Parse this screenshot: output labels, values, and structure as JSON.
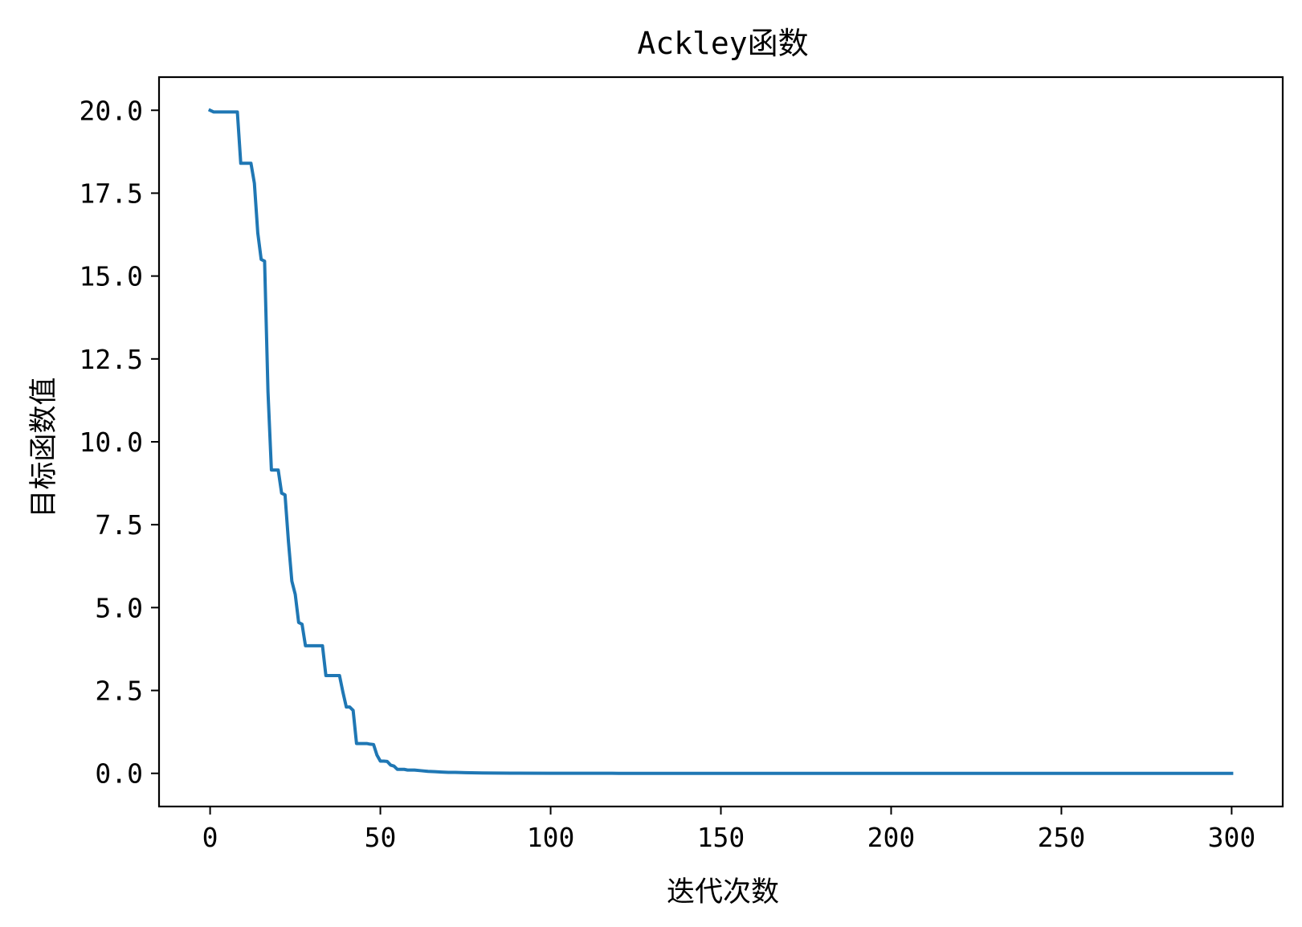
{
  "chart_data": {
    "type": "line",
    "title": "Ackley函数",
    "xlabel": "迭代次数",
    "ylabel": "目标函数值",
    "xlim": [
      -15,
      315
    ],
    "ylim": [
      -1,
      21
    ],
    "x_ticks": [
      0,
      50,
      100,
      150,
      200,
      250,
      300
    ],
    "x_tick_labels": [
      "0",
      "50",
      "100",
      "150",
      "200",
      "250",
      "300"
    ],
    "y_ticks": [
      0.0,
      2.5,
      5.0,
      7.5,
      10.0,
      12.5,
      15.0,
      17.5,
      20.0
    ],
    "y_tick_labels": [
      "0.0",
      "2.5",
      "5.0",
      "7.5",
      "10.0",
      "12.5",
      "15.0",
      "17.5",
      "20.0"
    ],
    "grid": false,
    "line_color": "#1f77b4",
    "series": [
      {
        "x": [
          0,
          1,
          2,
          3,
          4,
          5,
          6,
          7,
          8,
          9,
          10,
          11,
          12,
          13,
          14,
          15,
          16,
          17,
          18,
          19,
          20,
          21,
          22,
          23,
          24,
          25,
          26,
          27,
          28,
          29,
          30,
          31,
          32,
          33,
          34,
          35,
          36,
          37,
          38,
          39,
          40,
          41,
          42,
          43,
          44,
          45,
          46,
          47,
          48,
          49,
          50,
          51,
          52,
          53,
          54,
          55,
          56,
          57,
          58,
          59,
          60,
          62,
          64,
          66,
          68,
          70,
          72,
          75,
          80,
          90,
          100,
          120,
          150,
          200,
          250,
          300
        ],
        "y": [
          20.0,
          19.95,
          19.95,
          19.95,
          19.95,
          19.95,
          19.95,
          19.95,
          19.95,
          18.4,
          18.4,
          18.4,
          18.4,
          17.8,
          16.3,
          15.5,
          15.45,
          11.5,
          9.15,
          9.15,
          9.15,
          8.45,
          8.4,
          7.0,
          5.8,
          5.4,
          4.55,
          4.5,
          3.85,
          3.85,
          3.85,
          3.85,
          3.85,
          3.85,
          2.95,
          2.95,
          2.95,
          2.95,
          2.95,
          2.45,
          2.0,
          2.0,
          1.9,
          0.9,
          0.9,
          0.9,
          0.9,
          0.88,
          0.87,
          0.55,
          0.37,
          0.37,
          0.36,
          0.25,
          0.22,
          0.12,
          0.12,
          0.12,
          0.1,
          0.1,
          0.1,
          0.08,
          0.06,
          0.05,
          0.04,
          0.03,
          0.03,
          0.02,
          0.01,
          0.005,
          0.002,
          0.001,
          0.0,
          0.0,
          0.0,
          0.0
        ]
      }
    ]
  }
}
